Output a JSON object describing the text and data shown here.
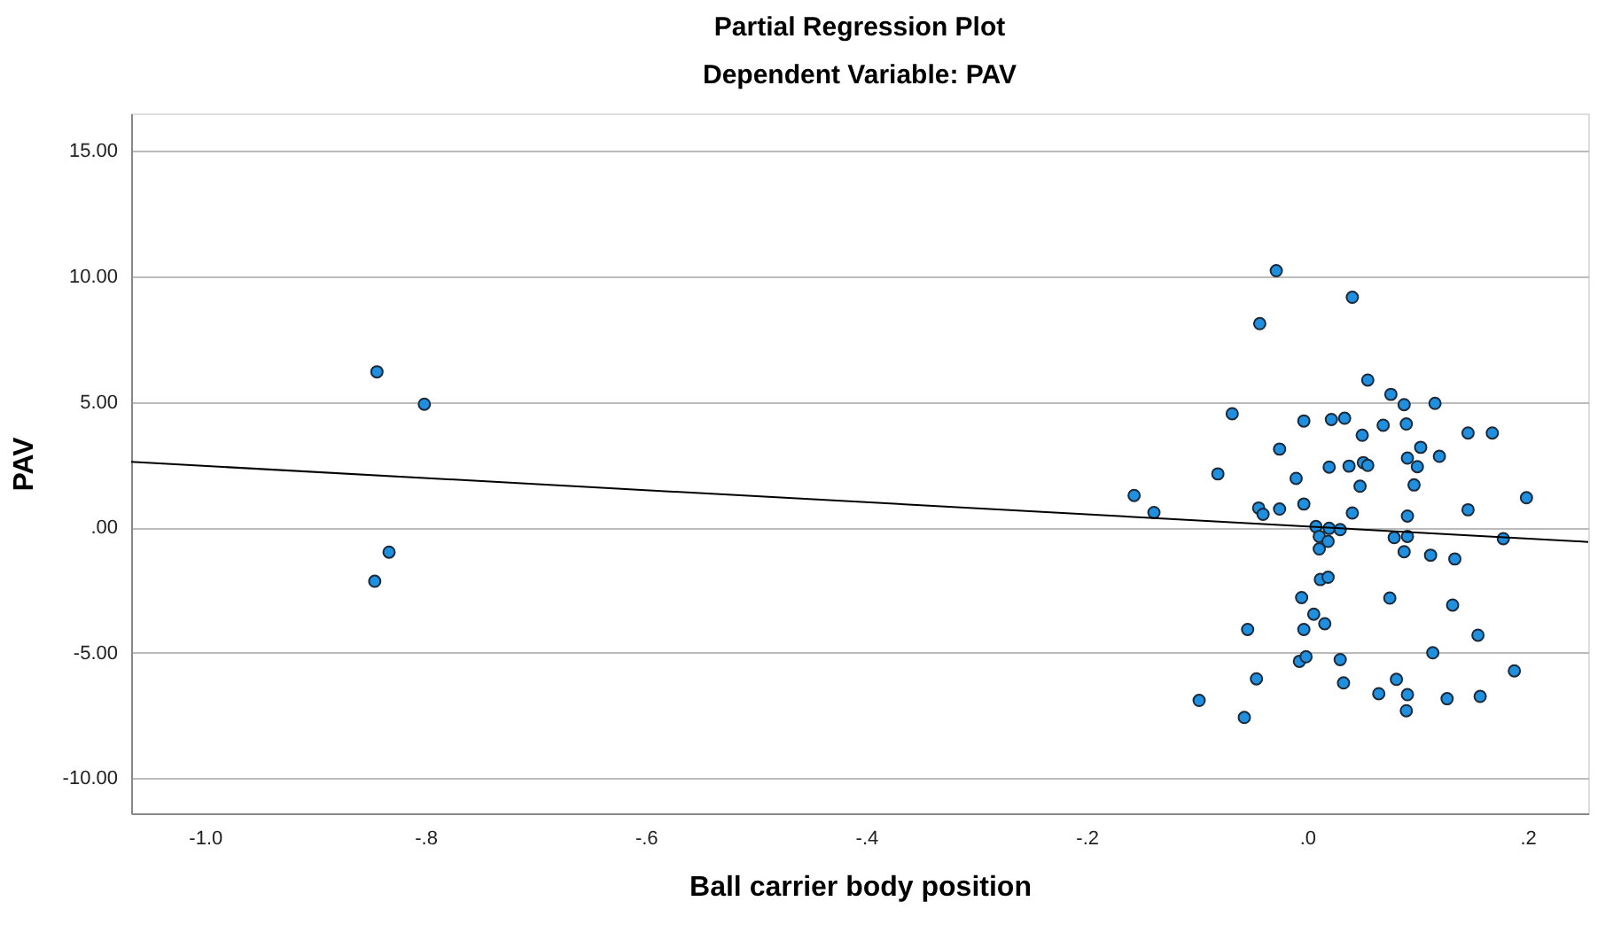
{
  "chart_data": {
    "type": "scatter",
    "title": "Partial Regression Plot",
    "subtitle": "Dependent Variable: PAV",
    "xlabel": "Ball carrier body position",
    "ylabel": "PAV",
    "xlim": [
      -1.067,
      0.255
    ],
    "ylim": [
      -11.4,
      16.5
    ],
    "xticks": [
      {
        "value": -1.0,
        "label": "-1.0"
      },
      {
        "value": -0.8,
        "label": "-.8"
      },
      {
        "value": -0.6,
        "label": "-.6"
      },
      {
        "value": -0.4,
        "label": "-.4"
      },
      {
        "value": -0.2,
        "label": "-.2"
      },
      {
        "value": 0,
        "label": ".0"
      },
      {
        "value": 0.2,
        "label": ".2"
      }
    ],
    "yticks": [
      {
        "value": -10,
        "label": "-10.00"
      },
      {
        "value": -5,
        "label": "-5.00"
      },
      {
        "value": 0,
        "label": ".00"
      },
      {
        "value": 5,
        "label": "5.00"
      },
      {
        "value": 10,
        "label": "10.00"
      },
      {
        "value": 15,
        "label": "15.00"
      }
    ],
    "grid": "y",
    "legend": false,
    "marker": "circle",
    "series": [
      {
        "type": "scatter",
        "color": "#1f8fe0",
        "x": [
          -0.844,
          -0.801,
          -0.833,
          -0.846,
          -0.028,
          0.041,
          -0.043,
          0.055,
          0.076,
          0.088,
          0.116,
          -0.068,
          -0.003,
          0.022,
          0.034,
          0.069,
          0.09,
          0.05,
          0.146,
          0.168,
          -0.025,
          0.103,
          0.12,
          0.091,
          -0.081,
          0.02,
          0.038,
          0.051,
          0.055,
          0.1,
          -0.01,
          0.048,
          0.097,
          -0.157,
          0.199,
          -0.139,
          -0.044,
          -0.04,
          -0.025,
          -0.003,
          0.041,
          0.091,
          0.146,
          0.008,
          0.02,
          0.03,
          0.011,
          0.019,
          0.011,
          0.079,
          0.091,
          0.178,
          0.088,
          0.112,
          0.134,
          0.012,
          0.019,
          -0.005,
          0.075,
          0.132,
          0.006,
          0.016,
          -0.054,
          -0.003,
          0.155,
          0.114,
          -0.007,
          -0.001,
          0.03,
          0.188,
          -0.046,
          0.033,
          0.081,
          -0.098,
          0.065,
          0.091,
          0.127,
          0.157,
          0.09,
          -0.057
        ],
        "values": [
          6.2,
          4.91,
          -0.99,
          -2.15,
          10.23,
          9.17,
          8.12,
          5.87,
          5.3,
          4.89,
          4.94,
          4.53,
          4.24,
          4.3,
          4.35,
          4.07,
          4.12,
          3.67,
          3.76,
          3.76,
          3.12,
          3.19,
          2.83,
          2.76,
          2.13,
          2.4,
          2.44,
          2.58,
          2.47,
          2.42,
          1.95,
          1.64,
          1.69,
          1.27,
          1.18,
          0.59,
          0.77,
          0.52,
          0.73,
          0.93,
          0.57,
          0.45,
          0.7,
          0.03,
          -0.04,
          -0.09,
          -0.36,
          -0.56,
          -0.86,
          -0.41,
          -0.36,
          -0.45,
          -0.97,
          -1.11,
          -1.26,
          -2.08,
          -1.99,
          -2.8,
          -2.82,
          -3.1,
          -3.46,
          -3.84,
          -4.07,
          -4.07,
          -4.3,
          -5.0,
          -5.34,
          -5.16,
          -5.27,
          -5.72,
          -6.04,
          -6.2,
          -6.06,
          -6.9,
          -6.63,
          -6.67,
          -6.83,
          -6.74,
          -7.31,
          -7.58
        ]
      },
      {
        "type": "line",
        "marker": "none",
        "line_style": "solid",
        "color": "#000000",
        "x": [
          -1.067,
          0.255
        ],
        "values": [
          2.61,
          -0.58
        ]
      }
    ]
  }
}
